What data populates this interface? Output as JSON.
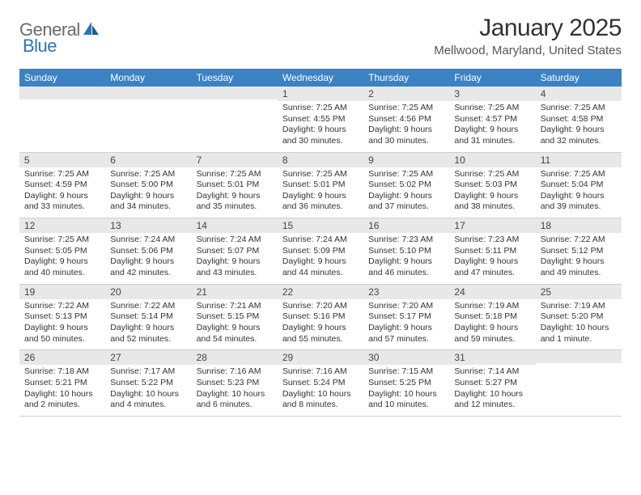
{
  "logo": {
    "textA": "General",
    "textB": "Blue"
  },
  "title": "January 2025",
  "location": "Mellwood, Maryland, United States",
  "colors": {
    "header_bg": "#3b82c4",
    "header_text": "#ffffff",
    "daynum_band_bg": "#e8e8e8",
    "body_text": "#333333",
    "row_border": "#cfcfcf",
    "logo_gray": "#6a6a6a",
    "logo_blue": "#2d73b8",
    "page_bg": "#ffffff"
  },
  "typography": {
    "title_fontsize": 30,
    "location_fontsize": 15,
    "dow_fontsize": 12,
    "daynum_fontsize": 12,
    "cell_fontsize": 10.5
  },
  "days_of_week": [
    "Sunday",
    "Monday",
    "Tuesday",
    "Wednesday",
    "Thursday",
    "Friday",
    "Saturday"
  ],
  "rows": [
    [
      {
        "n": "",
        "l1": "",
        "l2": "",
        "l3": "",
        "l4": ""
      },
      {
        "n": "",
        "l1": "",
        "l2": "",
        "l3": "",
        "l4": ""
      },
      {
        "n": "",
        "l1": "",
        "l2": "",
        "l3": "",
        "l4": ""
      },
      {
        "n": "1",
        "l1": "Sunrise: 7:25 AM",
        "l2": "Sunset: 4:55 PM",
        "l3": "Daylight: 9 hours",
        "l4": "and 30 minutes."
      },
      {
        "n": "2",
        "l1": "Sunrise: 7:25 AM",
        "l2": "Sunset: 4:56 PM",
        "l3": "Daylight: 9 hours",
        "l4": "and 30 minutes."
      },
      {
        "n": "3",
        "l1": "Sunrise: 7:25 AM",
        "l2": "Sunset: 4:57 PM",
        "l3": "Daylight: 9 hours",
        "l4": "and 31 minutes."
      },
      {
        "n": "4",
        "l1": "Sunrise: 7:25 AM",
        "l2": "Sunset: 4:58 PM",
        "l3": "Daylight: 9 hours",
        "l4": "and 32 minutes."
      }
    ],
    [
      {
        "n": "5",
        "l1": "Sunrise: 7:25 AM",
        "l2": "Sunset: 4:59 PM",
        "l3": "Daylight: 9 hours",
        "l4": "and 33 minutes."
      },
      {
        "n": "6",
        "l1": "Sunrise: 7:25 AM",
        "l2": "Sunset: 5:00 PM",
        "l3": "Daylight: 9 hours",
        "l4": "and 34 minutes."
      },
      {
        "n": "7",
        "l1": "Sunrise: 7:25 AM",
        "l2": "Sunset: 5:01 PM",
        "l3": "Daylight: 9 hours",
        "l4": "and 35 minutes."
      },
      {
        "n": "8",
        "l1": "Sunrise: 7:25 AM",
        "l2": "Sunset: 5:01 PM",
        "l3": "Daylight: 9 hours",
        "l4": "and 36 minutes."
      },
      {
        "n": "9",
        "l1": "Sunrise: 7:25 AM",
        "l2": "Sunset: 5:02 PM",
        "l3": "Daylight: 9 hours",
        "l4": "and 37 minutes."
      },
      {
        "n": "10",
        "l1": "Sunrise: 7:25 AM",
        "l2": "Sunset: 5:03 PM",
        "l3": "Daylight: 9 hours",
        "l4": "and 38 minutes."
      },
      {
        "n": "11",
        "l1": "Sunrise: 7:25 AM",
        "l2": "Sunset: 5:04 PM",
        "l3": "Daylight: 9 hours",
        "l4": "and 39 minutes."
      }
    ],
    [
      {
        "n": "12",
        "l1": "Sunrise: 7:25 AM",
        "l2": "Sunset: 5:05 PM",
        "l3": "Daylight: 9 hours",
        "l4": "and 40 minutes."
      },
      {
        "n": "13",
        "l1": "Sunrise: 7:24 AM",
        "l2": "Sunset: 5:06 PM",
        "l3": "Daylight: 9 hours",
        "l4": "and 42 minutes."
      },
      {
        "n": "14",
        "l1": "Sunrise: 7:24 AM",
        "l2": "Sunset: 5:07 PM",
        "l3": "Daylight: 9 hours",
        "l4": "and 43 minutes."
      },
      {
        "n": "15",
        "l1": "Sunrise: 7:24 AM",
        "l2": "Sunset: 5:09 PM",
        "l3": "Daylight: 9 hours",
        "l4": "and 44 minutes."
      },
      {
        "n": "16",
        "l1": "Sunrise: 7:23 AM",
        "l2": "Sunset: 5:10 PM",
        "l3": "Daylight: 9 hours",
        "l4": "and 46 minutes."
      },
      {
        "n": "17",
        "l1": "Sunrise: 7:23 AM",
        "l2": "Sunset: 5:11 PM",
        "l3": "Daylight: 9 hours",
        "l4": "and 47 minutes."
      },
      {
        "n": "18",
        "l1": "Sunrise: 7:22 AM",
        "l2": "Sunset: 5:12 PM",
        "l3": "Daylight: 9 hours",
        "l4": "and 49 minutes."
      }
    ],
    [
      {
        "n": "19",
        "l1": "Sunrise: 7:22 AM",
        "l2": "Sunset: 5:13 PM",
        "l3": "Daylight: 9 hours",
        "l4": "and 50 minutes."
      },
      {
        "n": "20",
        "l1": "Sunrise: 7:22 AM",
        "l2": "Sunset: 5:14 PM",
        "l3": "Daylight: 9 hours",
        "l4": "and 52 minutes."
      },
      {
        "n": "21",
        "l1": "Sunrise: 7:21 AM",
        "l2": "Sunset: 5:15 PM",
        "l3": "Daylight: 9 hours",
        "l4": "and 54 minutes."
      },
      {
        "n": "22",
        "l1": "Sunrise: 7:20 AM",
        "l2": "Sunset: 5:16 PM",
        "l3": "Daylight: 9 hours",
        "l4": "and 55 minutes."
      },
      {
        "n": "23",
        "l1": "Sunrise: 7:20 AM",
        "l2": "Sunset: 5:17 PM",
        "l3": "Daylight: 9 hours",
        "l4": "and 57 minutes."
      },
      {
        "n": "24",
        "l1": "Sunrise: 7:19 AM",
        "l2": "Sunset: 5:18 PM",
        "l3": "Daylight: 9 hours",
        "l4": "and 59 minutes."
      },
      {
        "n": "25",
        "l1": "Sunrise: 7:19 AM",
        "l2": "Sunset: 5:20 PM",
        "l3": "Daylight: 10 hours",
        "l4": "and 1 minute."
      }
    ],
    [
      {
        "n": "26",
        "l1": "Sunrise: 7:18 AM",
        "l2": "Sunset: 5:21 PM",
        "l3": "Daylight: 10 hours",
        "l4": "and 2 minutes."
      },
      {
        "n": "27",
        "l1": "Sunrise: 7:17 AM",
        "l2": "Sunset: 5:22 PM",
        "l3": "Daylight: 10 hours",
        "l4": "and 4 minutes."
      },
      {
        "n": "28",
        "l1": "Sunrise: 7:16 AM",
        "l2": "Sunset: 5:23 PM",
        "l3": "Daylight: 10 hours",
        "l4": "and 6 minutes."
      },
      {
        "n": "29",
        "l1": "Sunrise: 7:16 AM",
        "l2": "Sunset: 5:24 PM",
        "l3": "Daylight: 10 hours",
        "l4": "and 8 minutes."
      },
      {
        "n": "30",
        "l1": "Sunrise: 7:15 AM",
        "l2": "Sunset: 5:25 PM",
        "l3": "Daylight: 10 hours",
        "l4": "and 10 minutes."
      },
      {
        "n": "31",
        "l1": "Sunrise: 7:14 AM",
        "l2": "Sunset: 5:27 PM",
        "l3": "Daylight: 10 hours",
        "l4": "and 12 minutes."
      },
      {
        "n": "",
        "l1": "",
        "l2": "",
        "l3": "",
        "l4": ""
      }
    ]
  ]
}
